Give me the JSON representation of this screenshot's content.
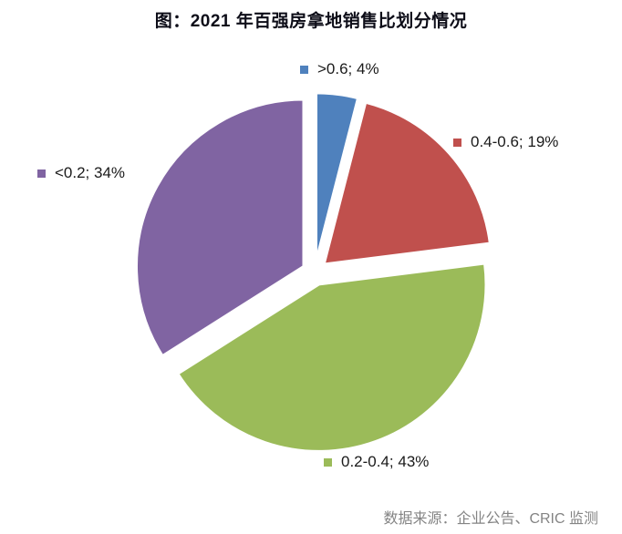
{
  "title": "图：2021 年百强房拿地销售比划分情况",
  "source": "数据来源：企业公告、CRIC 监测",
  "colors": {
    "title_text": "#0d0d18",
    "label_text": "#1a1a1a",
    "source_text": "#848484",
    "background": "#ffffff",
    "slice_border": "#ffffff"
  },
  "chart_data": {
    "type": "pie",
    "title": "图：2021 年百强房拿地销售比划分情况",
    "categories": [
      ">0.6",
      "0.4-0.6",
      "0.2-0.4",
      "<0.2"
    ],
    "values": [
      4,
      19,
      43,
      34
    ],
    "unit": "%",
    "slices": [
      {
        "category": ">0.6",
        "value": 4,
        "label": ">0.6; 4%",
        "color": "#4F81BD"
      },
      {
        "category": "0.4-0.6",
        "value": 19,
        "label": "0.4-0.6; 19%",
        "color": "#C0504D"
      },
      {
        "category": "0.2-0.4",
        "value": 43,
        "label": "0.2-0.4; 43%",
        "color": "#9BBB59"
      },
      {
        "category": "<0.2",
        "value": 34,
        "label": "<0.2; 34%",
        "color": "#8064A2"
      }
    ],
    "start_angle_deg": 0,
    "direction": "clockwise",
    "exploded": true,
    "legend_position": "outside-labels",
    "source": "数据来源：企业公告、CRIC 监测"
  }
}
